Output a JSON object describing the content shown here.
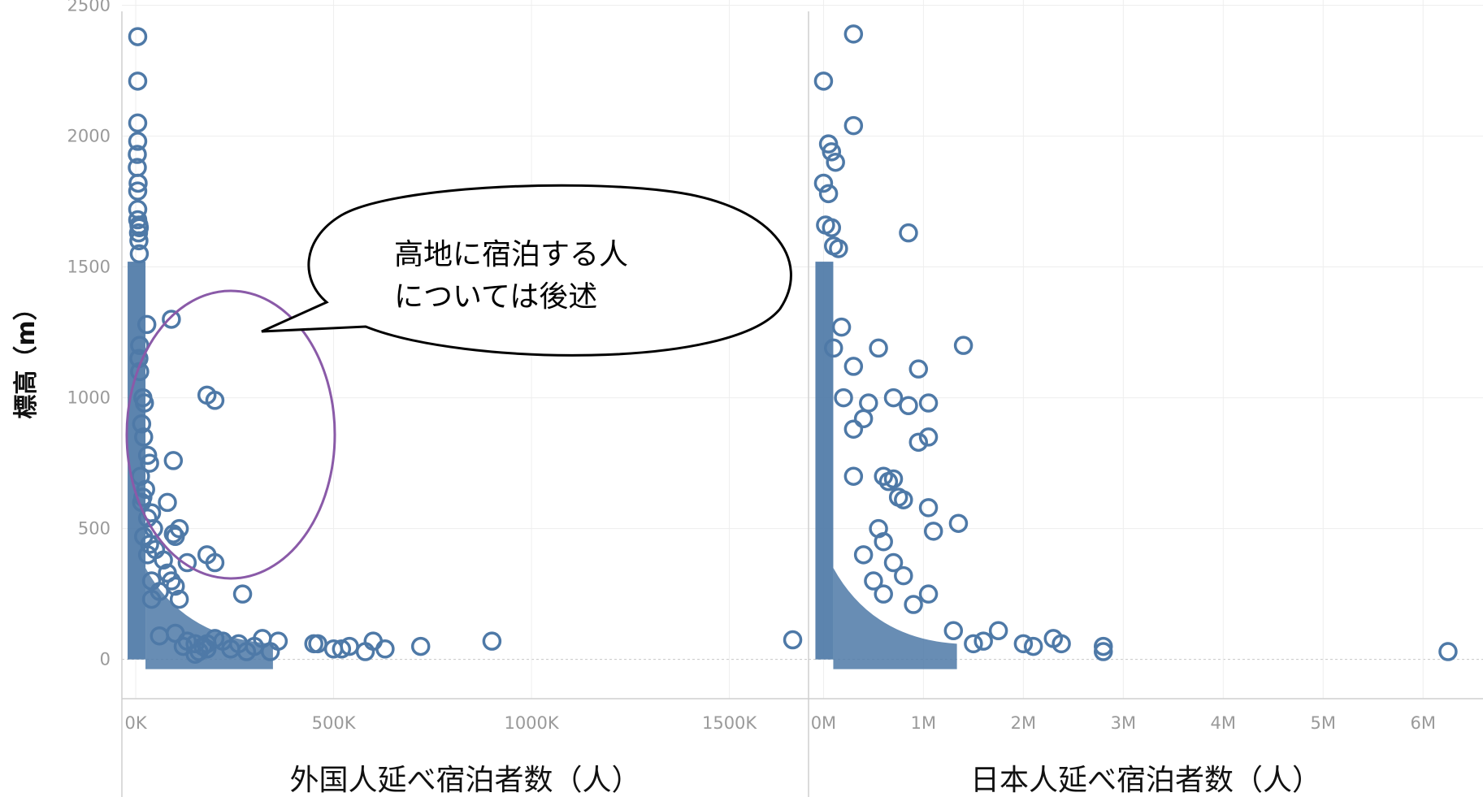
{
  "chart_data": [
    {
      "type": "scatter",
      "xlabel": "外国人延べ宿泊者数（人）",
      "ylabel": "標高（m）",
      "xlim": [
        -35000,
        1700000
      ],
      "ylim": [
        -150,
        2520
      ],
      "x_ticks": [
        0,
        500000,
        1000000,
        1500000
      ],
      "x_tick_labels": [
        "0K",
        "500K",
        "1000K",
        "1500K"
      ],
      "y_ticks": [
        0,
        500,
        1000,
        1500,
        2000,
        2500
      ],
      "y_tick_labels": [
        "0",
        "500",
        "1000",
        "1500",
        "2000",
        "2500"
      ],
      "grid": true,
      "marker_color": "#4e79a7",
      "series": [
        {
          "x": [
            5000,
            5000,
            5000,
            5000,
            4000,
            4000,
            6000,
            5000,
            5000,
            5000,
            8000,
            9000,
            7000,
            8000,
            9000,
            28000,
            10000,
            8000,
            10000,
            18000,
            22000,
            90000,
            15000,
            20000,
            35000,
            30000,
            95000,
            180000,
            200000,
            12000,
            25000,
            15000,
            18000,
            40000,
            30000,
            80000,
            45000,
            20000,
            35000,
            100000,
            50000,
            30000,
            70000,
            95000,
            110000,
            130000,
            80000,
            40000,
            180000,
            200000,
            100000,
            60000,
            40000,
            110000,
            90000,
            270000,
            120000,
            130000,
            150000,
            160000,
            170000,
            180000,
            200000,
            220000,
            240000,
            260000,
            280000,
            300000,
            320000,
            340000,
            360000,
            100000,
            60000,
            180000,
            150000,
            450000,
            500000,
            520000,
            580000,
            600000,
            460000,
            540000,
            630000,
            720000,
            900000,
            1660000
          ],
          "y": [
            2380,
            2210,
            2050,
            1980,
            1930,
            1880,
            1820,
            1790,
            1720,
            1680,
            1660,
            1650,
            1630,
            1600,
            1550,
            1280,
            1200,
            1150,
            1100,
            1000,
            980,
            1300,
            900,
            850,
            750,
            780,
            760,
            1010,
            990,
            700,
            650,
            600,
            620,
            560,
            540,
            600,
            500,
            470,
            440,
            470,
            420,
            400,
            380,
            480,
            500,
            370,
            330,
            300,
            400,
            370,
            280,
            260,
            230,
            230,
            300,
            250,
            50,
            70,
            60,
            30,
            50,
            40,
            80,
            70,
            40,
            60,
            30,
            50,
            80,
            30,
            70,
            100,
            90,
            60,
            20,
            60,
            40,
            40,
            30,
            70,
            60,
            50,
            40,
            50,
            70,
            75
          ]
        }
      ]
    },
    {
      "type": "scatter",
      "xlabel": "日本人延べ宿泊者数（人）",
      "ylabel": "",
      "xlim": [
        -150000,
        6600000
      ],
      "ylim": [
        -150,
        2520
      ],
      "x_ticks": [
        0,
        1000000,
        2000000,
        3000000,
        4000000,
        5000000,
        6000000
      ],
      "x_tick_labels": [
        "0M",
        "1M",
        "2M",
        "3M",
        "4M",
        "5M",
        "6M"
      ],
      "y_ticks": [
        0,
        500,
        1000,
        1500,
        2000,
        2500
      ],
      "y_tick_labels": [
        "0",
        "500",
        "1000",
        "1500",
        "2000",
        "2500"
      ],
      "grid": true,
      "marker_color": "#4e79a7",
      "series": [
        {
          "x": [
            300000,
            0,
            300000,
            50000,
            80000,
            120000,
            0,
            50000,
            20000,
            80000,
            100000,
            150000,
            180000,
            850000,
            100000,
            300000,
            550000,
            950000,
            1400000,
            200000,
            450000,
            700000,
            850000,
            1050000,
            300000,
            400000,
            950000,
            1050000,
            300000,
            600000,
            650000,
            700000,
            750000,
            800000,
            1050000,
            550000,
            600000,
            1350000,
            400000,
            700000,
            1050000,
            500000,
            800000,
            1100000,
            600000,
            900000,
            1300000,
            1500000,
            1750000,
            1600000,
            2000000,
            2100000,
            2300000,
            2380000,
            2800000,
            2800000,
            6250000
          ],
          "y": [
            2390,
            2210,
            2040,
            1970,
            1940,
            1900,
            1820,
            1780,
            1660,
            1650,
            1580,
            1570,
            1270,
            1630,
            1190,
            1120,
            1190,
            1110,
            1200,
            1000,
            980,
            1000,
            970,
            980,
            880,
            920,
            830,
            850,
            700,
            700,
            680,
            690,
            620,
            610,
            580,
            500,
            450,
            520,
            400,
            370,
            250,
            300,
            320,
            490,
            250,
            210,
            110,
            60,
            110,
            70,
            60,
            50,
            80,
            60,
            50,
            30,
            30
          ]
        }
      ]
    }
  ],
  "annotation": {
    "callout_lines": [
      "高地に宿泊する人",
      "については後述"
    ]
  }
}
